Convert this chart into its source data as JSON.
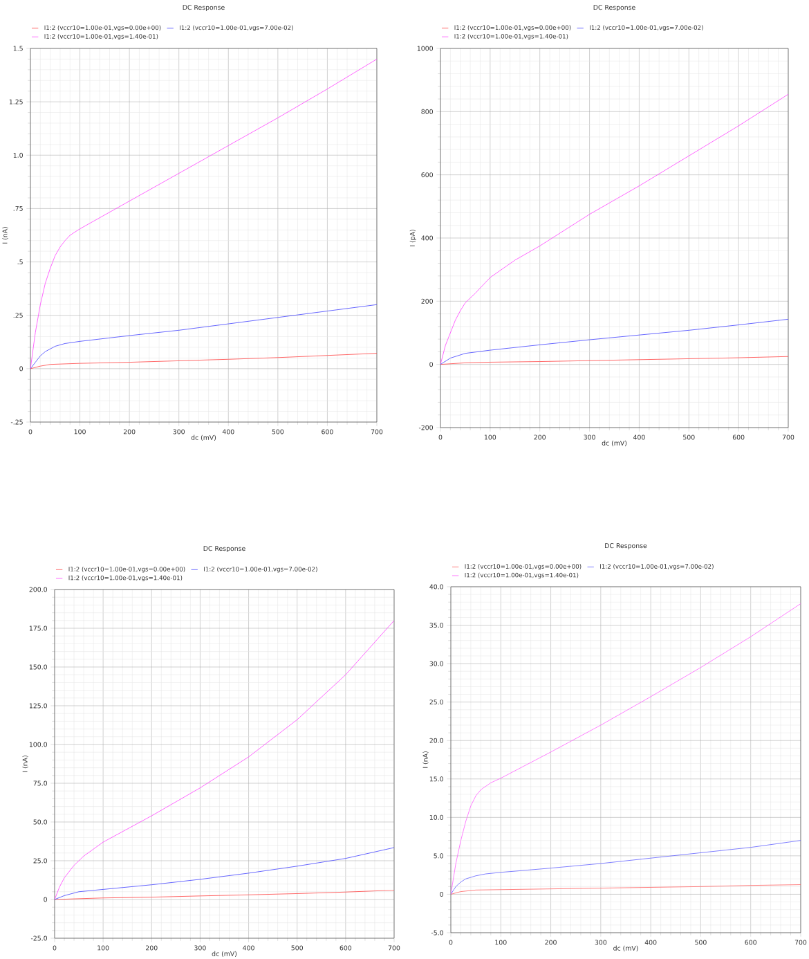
{
  "chart_data": [
    {
      "type": "line",
      "title": "DC Response",
      "xlabel": "dc (mV)",
      "ylabel": "I (nA)",
      "xlim": [
        0,
        700
      ],
      "xticks": [
        0,
        100,
        200,
        300,
        400,
        500,
        600,
        700
      ],
      "ylim": [
        -0.25,
        1.5
      ],
      "yticks": [
        {
          "value": -0.25,
          "label": "-.25"
        },
        0,
        {
          "value": 0.25,
          "label": ".25"
        },
        {
          "value": 0.5,
          "label": ".5"
        },
        {
          "value": 0.75,
          "label": ".75"
        },
        {
          "value": 1.0,
          "label": "1.0"
        },
        {
          "value": 1.25,
          "label": "1.25"
        },
        1.5
      ],
      "grid": true,
      "legend": "top left",
      "series": [
        {
          "name": "I1:2 (vccr10=1.00e-01,vgs=0.00e+00)",
          "color": "#ff4040",
          "x": [
            0,
            20,
            40,
            100,
            200,
            300,
            400,
            500,
            600,
            700
          ],
          "values": [
            0,
            0.012,
            0.02,
            0.025,
            0.03,
            0.037,
            0.044,
            0.052,
            0.062,
            0.072
          ]
        },
        {
          "name": "I1:2 (vccr10=1.00e-01,vgs=7.00e-02)",
          "color": "#4040ff",
          "x": [
            0,
            10,
            20,
            30,
            50,
            70,
            100,
            200,
            300,
            400,
            500,
            600,
            700
          ],
          "values": [
            0,
            0.03,
            0.06,
            0.08,
            0.105,
            0.118,
            0.128,
            0.155,
            0.18,
            0.21,
            0.24,
            0.27,
            0.3
          ]
        },
        {
          "name": "I1:2 (vccr10=1.00e-01,vgs=1.40e-01)",
          "color": "#ff40ff",
          "x": [
            0,
            10,
            20,
            30,
            40,
            50,
            60,
            70,
            80,
            100,
            150,
            200,
            300,
            400,
            500,
            600,
            700
          ],
          "values": [
            0,
            0.17,
            0.3,
            0.4,
            0.47,
            0.53,
            0.57,
            0.6,
            0.625,
            0.655,
            0.72,
            0.785,
            0.915,
            1.045,
            1.175,
            1.31,
            1.45
          ]
        }
      ]
    },
    {
      "type": "line",
      "title": "DC Response",
      "xlabel": "dc (mV)",
      "ylabel": "I (pA)",
      "xlim": [
        0,
        700
      ],
      "xticks": [
        0,
        100,
        200,
        300,
        400,
        500,
        600,
        700
      ],
      "ylim": [
        -200,
        1000
      ],
      "yticks": [
        -200,
        0,
        200,
        400,
        600,
        800,
        1000
      ],
      "grid": true,
      "legend": "top left",
      "series": [
        {
          "name": "I1:2 (vccr10=1.00e-01,vgs=0.00e+00)",
          "color": "#ff4040",
          "x": [
            0,
            50,
            100,
            200,
            300,
            400,
            500,
            600,
            700
          ],
          "values": [
            0,
            5,
            7,
            9,
            12,
            15,
            18,
            21,
            25
          ]
        },
        {
          "name": "I1:2 (vccr10=1.00e-01,vgs=7.00e-02)",
          "color": "#4040ff",
          "x": [
            0,
            20,
            50,
            100,
            200,
            300,
            400,
            500,
            600,
            700
          ],
          "values": [
            0,
            20,
            35,
            45,
            62,
            78,
            93,
            108,
            125,
            143
          ]
        },
        {
          "name": "I1:2 (vccr10=1.00e-01,vgs=1.40e-01)",
          "color": "#ff40ff",
          "x": [
            0,
            10,
            20,
            30,
            40,
            50,
            70,
            100,
            150,
            200,
            300,
            400,
            500,
            600,
            700
          ],
          "values": [
            0,
            60,
            100,
            140,
            170,
            195,
            225,
            275,
            330,
            375,
            475,
            565,
            660,
            755,
            855
          ]
        }
      ]
    },
    {
      "type": "line",
      "title": "DC Response",
      "xlabel": "dc (mV)",
      "ylabel": "I (nA)",
      "xlim": [
        0,
        700
      ],
      "xticks": [
        0,
        100,
        200,
        300,
        400,
        500,
        600,
        700
      ],
      "ylim": [
        -25,
        200
      ],
      "yticks": [
        {
          "value": -25,
          "label": "-25.0"
        },
        {
          "value": 0,
          "label": "0"
        },
        {
          "value": 25,
          "label": "25.0"
        },
        {
          "value": 50,
          "label": "50.0"
        },
        {
          "value": 75,
          "label": "75.0"
        },
        {
          "value": 100,
          "label": "100.0"
        },
        {
          "value": 125,
          "label": "125.0"
        },
        {
          "value": 150,
          "label": "150.0"
        },
        {
          "value": 175,
          "label": "175.0"
        },
        {
          "value": 200,
          "label": "200.0"
        }
      ],
      "grid": true,
      "legend": "top left",
      "series": [
        {
          "name": "I1:2 (vccr10=1.00e-01,vgs=0.00e+00)",
          "color": "#ff4040",
          "x": [
            0,
            100,
            200,
            300,
            400,
            500,
            600,
            700
          ],
          "values": [
            0,
            1,
            1.5,
            2.3,
            3,
            3.8,
            4.8,
            6
          ]
        },
        {
          "name": "I1:2 (vccr10=1.00e-01,vgs=7.00e-02)",
          "color": "#4040ff",
          "x": [
            0,
            20,
            50,
            100,
            200,
            300,
            400,
            500,
            600,
            700
          ],
          "values": [
            0,
            2.5,
            5,
            6.5,
            9.5,
            13,
            17,
            21.5,
            26.5,
            33.5
          ]
        },
        {
          "name": "I1:2 (vccr10=1.00e-01,vgs=1.40e-01)",
          "color": "#ff40ff",
          "x": [
            0,
            10,
            20,
            40,
            60,
            100,
            200,
            300,
            400,
            500,
            600,
            700
          ],
          "values": [
            0,
            8,
            14,
            22,
            28,
            37,
            54,
            72,
            92,
            116,
            145,
            180
          ]
        }
      ]
    },
    {
      "type": "line",
      "title": "DC Response",
      "xlabel": "dc (mV)",
      "ylabel": "I (nA)",
      "xlim": [
        0,
        700
      ],
      "xticks": [
        0,
        100,
        200,
        300,
        400,
        500,
        600,
        700
      ],
      "ylim": [
        -5,
        40
      ],
      "yticks": [
        {
          "value": -5,
          "label": "-5.0"
        },
        {
          "value": 0,
          "label": "0"
        },
        {
          "value": 5,
          "label": "5.0"
        },
        {
          "value": 10,
          "label": "10.0"
        },
        {
          "value": 15,
          "label": "15.0"
        },
        {
          "value": 20,
          "label": "20.0"
        },
        {
          "value": 25,
          "label": "25.0"
        },
        {
          "value": 30,
          "label": "30.0"
        },
        {
          "value": 35,
          "label": "35.0"
        },
        {
          "value": 40,
          "label": "40.0"
        }
      ],
      "grid": true,
      "legend": "top left",
      "series": [
        {
          "name": "I1:2 (vccr10=1.00e-01,vgs=0.00e+00)",
          "color": "#ff6060",
          "x": [
            0,
            20,
            50,
            100,
            200,
            300,
            400,
            500,
            600,
            700
          ],
          "values": [
            0,
            0.35,
            0.55,
            0.6,
            0.7,
            0.8,
            0.9,
            1.0,
            1.15,
            1.25
          ]
        },
        {
          "name": "I1:2 (vccr10=1.00e-01,vgs=7.00e-02)",
          "color": "#6060ff",
          "x": [
            0,
            10,
            20,
            30,
            50,
            70,
            100,
            200,
            300,
            400,
            500,
            600,
            700
          ],
          "values": [
            0,
            1,
            1.6,
            2,
            2.4,
            2.65,
            2.85,
            3.4,
            4,
            4.7,
            5.4,
            6.1,
            7
          ]
        },
        {
          "name": "I1:2 (vccr10=1.00e-01,vgs=1.40e-01)",
          "color": "#ff60ff",
          "x": [
            0,
            10,
            20,
            30,
            40,
            50,
            60,
            80,
            100,
            200,
            300,
            400,
            500,
            600,
            700
          ],
          "values": [
            0,
            4,
            7,
            9.5,
            11.5,
            12.8,
            13.6,
            14.5,
            15.1,
            18.5,
            22,
            25.7,
            29.5,
            33.5,
            37.8
          ]
        }
      ]
    }
  ]
}
